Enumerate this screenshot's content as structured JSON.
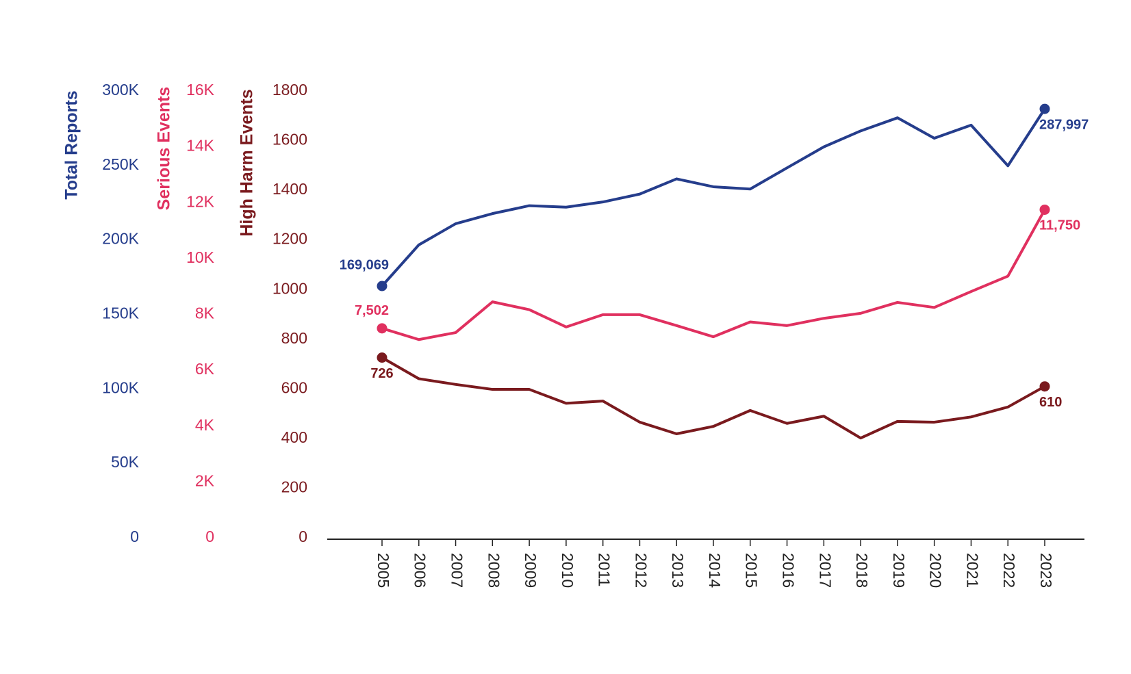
{
  "chart_data": {
    "type": "line",
    "ylabel": "High Harm Events",
    "y2label": "Serious Events",
    "y3label": "Total Reports",
    "categories": [
      "2005",
      "2006",
      "2007",
      "2008",
      "2009",
      "2010",
      "2011",
      "2012",
      "2013",
      "2014",
      "2015",
      "2016",
      "2017",
      "2018",
      "2019",
      "2020",
      "2021",
      "2022",
      "2023"
    ],
    "ylim": [
      0,
      1800
    ],
    "yticks": [
      0,
      200,
      400,
      600,
      800,
      1000,
      1200,
      1400,
      1600,
      1800
    ],
    "ycolor": "#7a1a1e",
    "y2lim": [
      0,
      16000
    ],
    "y2ticks": [
      0,
      {
        "value": 2000,
        "label": "2K"
      },
      {
        "value": 4000,
        "label": "4K"
      },
      {
        "value": 6000,
        "label": "6K"
      },
      {
        "value": 8000,
        "label": "8K"
      },
      {
        "value": 10000,
        "label": "10K"
      },
      {
        "value": 12000,
        "label": "12K"
      },
      {
        "value": 14000,
        "label": "14K"
      },
      {
        "value": 16000,
        "label": "16K"
      }
    ],
    "y2color": "#e0305f",
    "y3lim": [
      0,
      300000
    ],
    "y3ticks": [
      0,
      {
        "value": 50000,
        "label": "50K"
      },
      {
        "value": 100000,
        "label": "100K"
      },
      {
        "value": 150000,
        "label": "150K"
      },
      {
        "value": 200000,
        "label": "200K"
      },
      {
        "value": 250000,
        "label": "250K"
      },
      {
        "value": 300000,
        "label": "300K"
      }
    ],
    "y3color": "#253d8c",
    "series": [
      {
        "name": "Total Reports",
        "axis": "y3",
        "color": "#253d8c",
        "values": [
          169069,
          196700,
          210900,
          217700,
          223000,
          222000,
          225500,
          230800,
          241000,
          235700,
          234200,
          248400,
          262500,
          273200,
          282000,
          268300,
          277100,
          249800,
          287997
        ],
        "value_labels": [
          "169,069",
          null,
          null,
          null,
          null,
          null,
          null,
          null,
          null,
          null,
          null,
          null,
          null,
          null,
          null,
          null,
          null,
          null,
          "287,997"
        ]
      },
      {
        "name": "Serious Events",
        "axis": "y2",
        "color": "#e0305f",
        "values": [
          7502,
          7100,
          7350,
          8450,
          8170,
          7550,
          7990,
          7990,
          7600,
          7200,
          7730,
          7600,
          7860,
          8040,
          8430,
          8250,
          8820,
          9370,
          11750
        ],
        "value_labels": [
          "7,502",
          null,
          null,
          null,
          null,
          null,
          null,
          null,
          null,
          null,
          null,
          null,
          null,
          null,
          null,
          null,
          null,
          null,
          "11,750"
        ]
      },
      {
        "name": "High Harm Events",
        "axis": "y",
        "color": "#7a1a1e",
        "values": [
          726,
          641,
          618,
          598,
          598,
          542,
          551,
          466,
          419,
          449,
          513,
          461,
          490,
          402,
          469,
          466,
          487,
          527,
          610
        ]
      }
    ]
  }
}
